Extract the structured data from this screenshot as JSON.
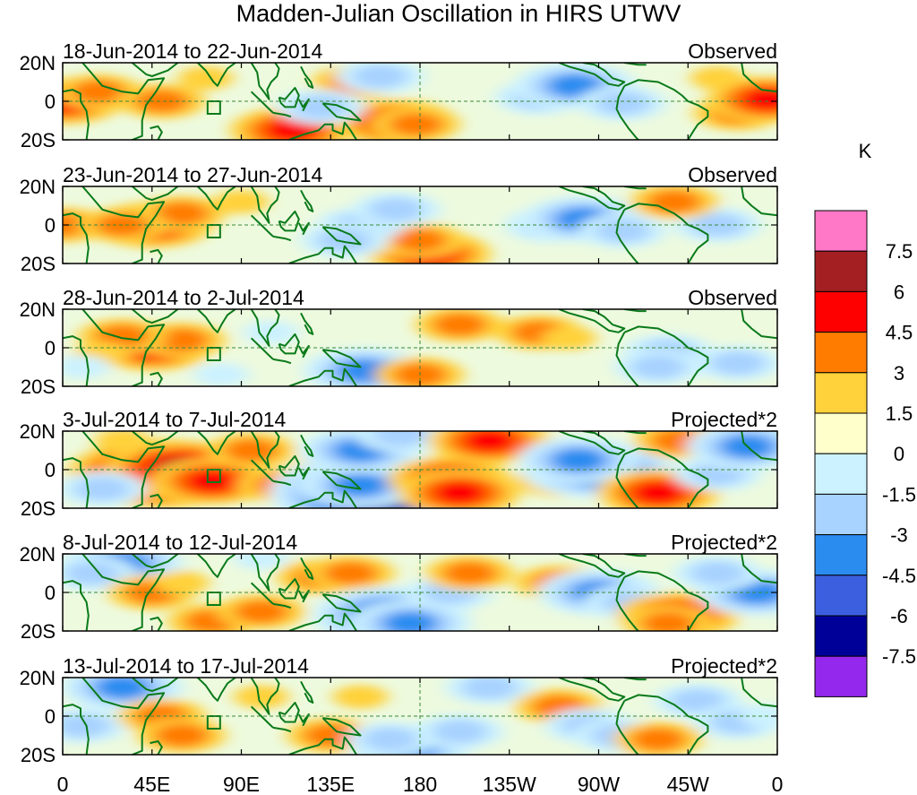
{
  "title": "Madden-Julian Oscillation in HIRS UTWV",
  "colorbar": {
    "unit": "K",
    "labels": [
      "7.5",
      "6",
      "4.5",
      "3",
      "1.5",
      "0",
      "-1.5",
      "-3",
      "-4.5",
      "-6",
      "-7.5"
    ],
    "colors": [
      "#ff77c7",
      "#a31f22",
      "#ff0000",
      "#ff7c00",
      "#ffd13b",
      "#ffffcc",
      "#ccf2ff",
      "#a8d2ff",
      "#2b8cf0",
      "#3c5fe0",
      "#000099",
      "#9428ec"
    ]
  },
  "axes": {
    "lon_labels": [
      "0",
      "45E",
      "90E",
      "135E",
      "180",
      "135W",
      "90W",
      "45W",
      "0"
    ],
    "lat_labels": [
      "20N",
      "0",
      "20S"
    ]
  },
  "panels": [
    {
      "date": "18-Jun-2014 to 22-Jun-2014",
      "type": "Observed",
      "blobs": [
        [
          0,
          0,
          3
        ],
        [
          18,
          5,
          2
        ],
        [
          50,
          0,
          2
        ],
        [
          115,
          -15,
          3
        ],
        [
          168,
          -11,
          3
        ],
        [
          178,
          -12,
          2
        ],
        [
          148,
          10,
          2
        ],
        [
          160,
          13,
          -2
        ],
        [
          130,
          -3,
          -2
        ],
        [
          240,
          2,
          -2
        ],
        [
          258,
          8,
          -3
        ],
        [
          282,
          -1,
          -2
        ],
        [
          340,
          -6,
          2
        ],
        [
          355,
          1,
          3
        ],
        [
          330,
          12,
          1
        ],
        [
          72,
          12,
          1
        ]
      ]
    },
    {
      "date": "23-Jun-2014 to 27-Jun-2014",
      "type": "Observed",
      "blobs": [
        [
          0,
          0,
          2
        ],
        [
          45,
          0,
          3
        ],
        [
          60,
          6,
          2
        ],
        [
          30,
          0,
          2
        ],
        [
          185,
          -15,
          3
        ],
        [
          180,
          -8,
          2
        ],
        [
          150,
          0,
          -2
        ],
        [
          142,
          -8,
          -2
        ],
        [
          168,
          8,
          -2
        ],
        [
          245,
          0,
          -2
        ],
        [
          262,
          3,
          -3
        ],
        [
          282,
          -3,
          -2
        ],
        [
          330,
          0,
          -2
        ],
        [
          308,
          12,
          2
        ],
        [
          90,
          12,
          1
        ]
      ]
    },
    {
      "date": "28-Jun-2014 to 2-Jul-2014",
      "type": "Observed",
      "blobs": [
        [
          45,
          0,
          3
        ],
        [
          60,
          4,
          2
        ],
        [
          30,
          6,
          2
        ],
        [
          20,
          -3,
          1
        ],
        [
          150,
          -10,
          -2
        ],
        [
          152,
          -12,
          -3
        ],
        [
          180,
          -14,
          2
        ],
        [
          200,
          12,
          2
        ],
        [
          240,
          8,
          2
        ],
        [
          255,
          5,
          1
        ],
        [
          305,
          -2,
          -2
        ],
        [
          300,
          -10,
          -2
        ],
        [
          340,
          -8,
          -2
        ],
        [
          105,
          8,
          -1
        ],
        [
          80,
          -14,
          -1
        ],
        [
          10,
          -10,
          -1
        ]
      ]
    },
    {
      "date": "3-Jul-2014 to 7-Jul-2014",
      "type": "Projected*2",
      "blobs": [
        [
          50,
          -2,
          5
        ],
        [
          60,
          0,
          4
        ],
        [
          75,
          -6,
          3
        ],
        [
          110,
          -8,
          2
        ],
        [
          95,
          10,
          2
        ],
        [
          135,
          -2,
          2
        ],
        [
          160,
          -12,
          -6
        ],
        [
          150,
          -8,
          -3
        ],
        [
          150,
          10,
          -3
        ],
        [
          170,
          18,
          -2
        ],
        [
          215,
          15,
          3
        ],
        [
          195,
          -5,
          3
        ],
        [
          200,
          -12,
          3
        ],
        [
          250,
          -5,
          2
        ],
        [
          270,
          0,
          -4
        ],
        [
          260,
          5,
          -3
        ],
        [
          300,
          -12,
          3
        ],
        [
          310,
          15,
          2
        ],
        [
          330,
          -2,
          -2
        ],
        [
          345,
          12,
          -3
        ],
        [
          20,
          -10,
          -2
        ],
        [
          30,
          15,
          1
        ]
      ]
    },
    {
      "date": "8-Jul-2014 to 12-Jul-2014",
      "type": "Projected*2",
      "blobs": [
        [
          30,
          15,
          -3
        ],
        [
          15,
          10,
          -2
        ],
        [
          45,
          0,
          2
        ],
        [
          60,
          5,
          1
        ],
        [
          75,
          -15,
          2
        ],
        [
          100,
          -10,
          2
        ],
        [
          130,
          8,
          2
        ],
        [
          145,
          10,
          2
        ],
        [
          165,
          -12,
          -4
        ],
        [
          175,
          -16,
          -3
        ],
        [
          195,
          0,
          -2
        ],
        [
          205,
          10,
          2
        ],
        [
          250,
          5,
          2
        ],
        [
          270,
          0,
          -3
        ],
        [
          285,
          -5,
          -2
        ],
        [
          310,
          -12,
          3
        ],
        [
          305,
          -16,
          2
        ],
        [
          350,
          0,
          -3
        ],
        [
          330,
          10,
          -2
        ],
        [
          100,
          18,
          -1
        ]
      ]
    },
    {
      "date": "13-Jul-2014 to 17-Jul-2014",
      "type": "Projected*2",
      "blobs": [
        [
          30,
          15,
          -3
        ],
        [
          10,
          -5,
          -2
        ],
        [
          50,
          0,
          2
        ],
        [
          60,
          -10,
          2
        ],
        [
          100,
          10,
          1
        ],
        [
          135,
          -10,
          2
        ],
        [
          150,
          10,
          1
        ],
        [
          175,
          -16,
          -3
        ],
        [
          165,
          -12,
          -2
        ],
        [
          200,
          -8,
          -2
        ],
        [
          215,
          15,
          -2
        ],
        [
          250,
          5,
          2
        ],
        [
          265,
          -5,
          -2
        ],
        [
          280,
          -10,
          -2
        ],
        [
          320,
          8,
          -2
        ],
        [
          300,
          -12,
          2
        ],
        [
          340,
          -3,
          -2
        ],
        [
          355,
          0,
          -1
        ]
      ]
    }
  ]
}
